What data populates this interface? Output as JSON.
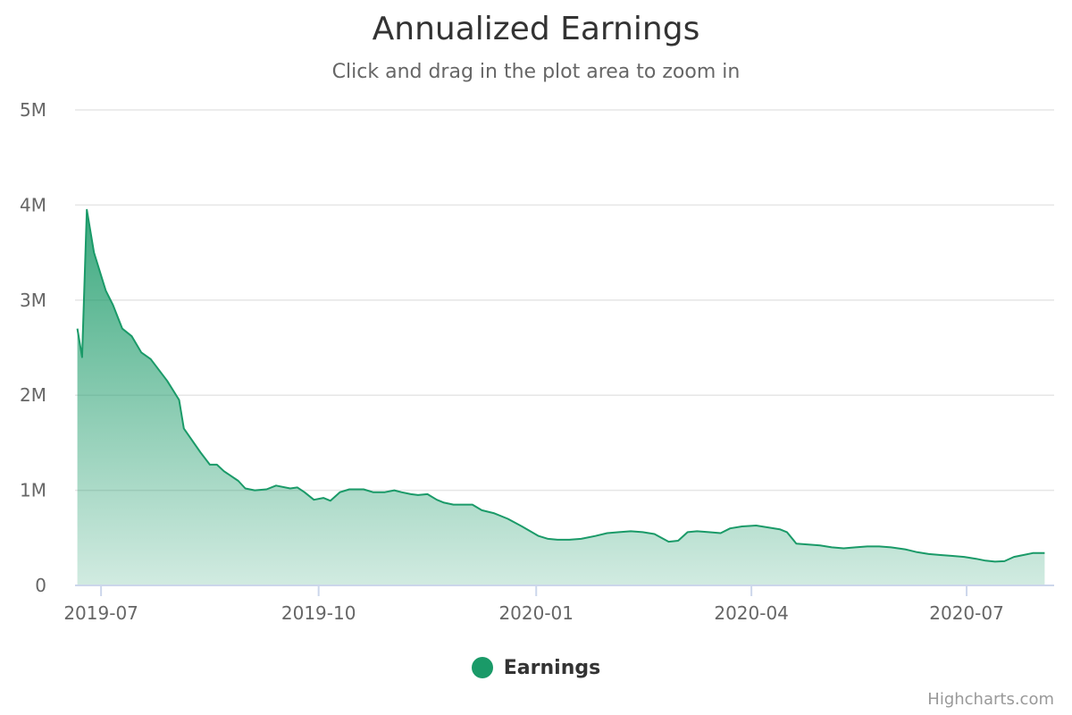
{
  "chart_data": {
    "type": "area",
    "title": "Annualized Earnings",
    "subtitle": "Click and drag in the plot area to zoom in",
    "xlabel": "",
    "ylabel": "",
    "xlim": [
      "2019-06-20",
      "2020-08-07"
    ],
    "ylim": [
      0,
      5000000
    ],
    "y_ticks": [
      "0",
      "1M",
      "2M",
      "3M",
      "4M",
      "5M"
    ],
    "x_ticks": [
      "2019-07",
      "2019-10",
      "2020-01",
      "2020-04",
      "2020-07"
    ],
    "grid": true,
    "legend_position": "bottom-center",
    "series": [
      {
        "name": "Earnings",
        "color": "#1a9a68",
        "points": [
          [
            "2019-06-21",
            2700000
          ],
          [
            "2019-06-23",
            2400000
          ],
          [
            "2019-06-25",
            3950000
          ],
          [
            "2019-06-28",
            3500000
          ],
          [
            "2019-07-03",
            3100000
          ],
          [
            "2019-07-06",
            2950000
          ],
          [
            "2019-07-10",
            2700000
          ],
          [
            "2019-07-14",
            2620000
          ],
          [
            "2019-07-18",
            2450000
          ],
          [
            "2019-07-22",
            2380000
          ],
          [
            "2019-07-29",
            2150000
          ],
          [
            "2019-08-03",
            1950000
          ],
          [
            "2019-08-05",
            1650000
          ],
          [
            "2019-08-12",
            1400000
          ],
          [
            "2019-08-16",
            1270000
          ],
          [
            "2019-08-19",
            1270000
          ],
          [
            "2019-08-22",
            1200000
          ],
          [
            "2019-08-28",
            1100000
          ],
          [
            "2019-08-31",
            1020000
          ],
          [
            "2019-09-04",
            1000000
          ],
          [
            "2019-09-09",
            1010000
          ],
          [
            "2019-09-13",
            1050000
          ],
          [
            "2019-09-19",
            1020000
          ],
          [
            "2019-09-22",
            1030000
          ],
          [
            "2019-09-25",
            980000
          ],
          [
            "2019-09-29",
            900000
          ],
          [
            "2019-10-03",
            920000
          ],
          [
            "2019-10-06",
            890000
          ],
          [
            "2019-10-10",
            980000
          ],
          [
            "2019-10-14",
            1010000
          ],
          [
            "2019-10-20",
            1010000
          ],
          [
            "2019-10-24",
            980000
          ],
          [
            "2019-10-29",
            980000
          ],
          [
            "2019-11-02",
            1000000
          ],
          [
            "2019-11-05",
            980000
          ],
          [
            "2019-11-09",
            960000
          ],
          [
            "2019-11-12",
            950000
          ],
          [
            "2019-11-16",
            960000
          ],
          [
            "2019-11-20",
            900000
          ],
          [
            "2019-11-23",
            870000
          ],
          [
            "2019-11-27",
            850000
          ],
          [
            "2019-12-01",
            850000
          ],
          [
            "2019-12-05",
            850000
          ],
          [
            "2019-12-09",
            790000
          ],
          [
            "2019-12-14",
            760000
          ],
          [
            "2019-12-20",
            700000
          ],
          [
            "2019-12-26",
            620000
          ],
          [
            "2020-01-02",
            520000
          ],
          [
            "2020-01-06",
            490000
          ],
          [
            "2020-01-10",
            480000
          ],
          [
            "2020-01-15",
            480000
          ],
          [
            "2020-01-20",
            490000
          ],
          [
            "2020-01-26",
            520000
          ],
          [
            "2020-01-31",
            550000
          ],
          [
            "2020-02-05",
            560000
          ],
          [
            "2020-02-10",
            570000
          ],
          [
            "2020-02-15",
            560000
          ],
          [
            "2020-02-20",
            540000
          ],
          [
            "2020-02-26",
            460000
          ],
          [
            "2020-03-01",
            470000
          ],
          [
            "2020-03-05",
            560000
          ],
          [
            "2020-03-09",
            570000
          ],
          [
            "2020-03-14",
            560000
          ],
          [
            "2020-03-19",
            550000
          ],
          [
            "2020-03-23",
            600000
          ],
          [
            "2020-03-28",
            620000
          ],
          [
            "2020-04-03",
            630000
          ],
          [
            "2020-04-08",
            610000
          ],
          [
            "2020-04-13",
            590000
          ],
          [
            "2020-04-16",
            560000
          ],
          [
            "2020-04-20",
            440000
          ],
          [
            "2020-04-25",
            430000
          ],
          [
            "2020-04-30",
            420000
          ],
          [
            "2020-05-05",
            400000
          ],
          [
            "2020-05-10",
            390000
          ],
          [
            "2020-05-15",
            400000
          ],
          [
            "2020-05-20",
            410000
          ],
          [
            "2020-05-25",
            410000
          ],
          [
            "2020-05-30",
            400000
          ],
          [
            "2020-06-05",
            380000
          ],
          [
            "2020-06-10",
            350000
          ],
          [
            "2020-06-15",
            330000
          ],
          [
            "2020-06-20",
            320000
          ],
          [
            "2020-06-25",
            310000
          ],
          [
            "2020-06-30",
            300000
          ],
          [
            "2020-07-05",
            280000
          ],
          [
            "2020-07-09",
            260000
          ],
          [
            "2020-07-13",
            250000
          ],
          [
            "2020-07-17",
            255000
          ],
          [
            "2020-07-21",
            300000
          ],
          [
            "2020-07-25",
            320000
          ],
          [
            "2020-07-29",
            340000
          ],
          [
            "2020-08-03",
            340000
          ]
        ]
      }
    ]
  },
  "credits": "Highcharts.com"
}
